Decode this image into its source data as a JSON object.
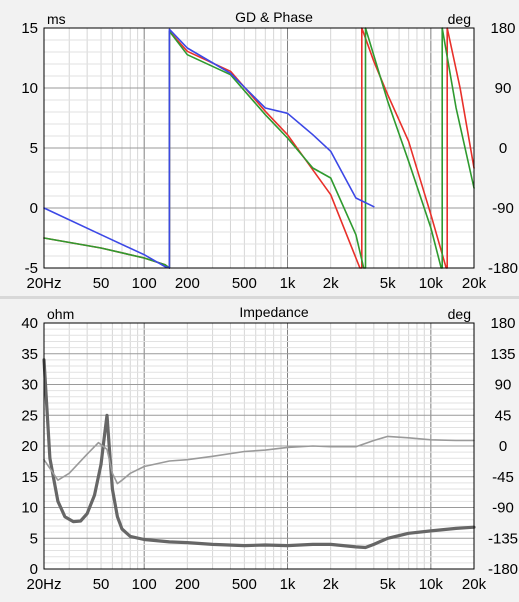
{
  "chart_data": [
    {
      "type": "line",
      "title": "GD & Phase",
      "xscale": "log",
      "xlim": [
        20,
        20000
      ],
      "x_ticks": [
        20,
        50,
        100,
        200,
        500,
        1000,
        2000,
        5000,
        10000,
        20000
      ],
      "x_tick_labels": [
        "20Hz",
        "50",
        "100",
        "200",
        "500",
        "1k",
        "2k",
        "5k",
        "10k",
        "20k"
      ],
      "left_axis": {
        "unit": "ms",
        "lim": [
          -5,
          15
        ],
        "ticks": [
          -5,
          0,
          5,
          10,
          15
        ],
        "tick_labels": [
          "-5",
          "0",
          "5",
          "10",
          "15"
        ]
      },
      "right_axis": {
        "unit": "deg",
        "lim": [
          -180,
          180
        ],
        "ticks": [
          -180,
          -90,
          0,
          90,
          180
        ],
        "tick_labels": [
          "-180",
          "-90",
          "0",
          "90",
          "180"
        ]
      },
      "grid": true,
      "series": [
        {
          "color": "#e8302a",
          "axis": "right",
          "wrap": true,
          "x": [
            20,
            50,
            100,
            140,
            150,
            200,
            400,
            700,
            1000,
            2000,
            3200,
            3300,
            4000,
            5000,
            7000,
            10000,
            12800,
            13000,
            16000,
            20000
          ],
          "y": [
            -135,
            -150,
            -165,
            -175,
            175,
            145,
            115,
            55,
            20,
            -70,
            -180,
            180,
            130,
            80,
            10,
            -100,
            -180,
            180,
            90,
            -30
          ]
        },
        {
          "color": "#2f9a2f",
          "axis": "right",
          "wrap": true,
          "x": [
            20,
            50,
            100,
            140,
            150,
            200,
            400,
            700,
            1000,
            1500,
            2000,
            3000,
            3400,
            3500,
            5000,
            7000,
            10000,
            11800,
            12000,
            15000,
            20000
          ],
          "y": [
            -135,
            -150,
            -165,
            -175,
            175,
            140,
            110,
            50,
            15,
            -30,
            -45,
            -130,
            -180,
            180,
            70,
            -20,
            -120,
            -180,
            180,
            60,
            -60
          ]
        },
        {
          "color": "#3c48e6",
          "axis": "right",
          "wrap": true,
          "x": [
            20,
            50,
            100,
            140,
            150,
            200,
            400,
            700,
            1000,
            1500,
            2000,
            3000,
            4000
          ],
          "y": [
            -90,
            -130,
            -160,
            -178,
            178,
            150,
            112,
            60,
            52,
            20,
            -5,
            -75,
            -88
          ]
        }
      ]
    },
    {
      "type": "line",
      "title": "Impedance",
      "xscale": "log",
      "xlim": [
        20,
        20000
      ],
      "x_ticks": [
        20,
        50,
        100,
        200,
        500,
        1000,
        2000,
        5000,
        10000,
        20000
      ],
      "x_tick_labels": [
        "20Hz",
        "50",
        "100",
        "200",
        "500",
        "1k",
        "2k",
        "5k",
        "10k",
        "20k"
      ],
      "left_axis": {
        "unit": "ohm",
        "lim": [
          0,
          40
        ],
        "ticks": [
          0,
          5,
          10,
          15,
          20,
          25,
          30,
          35,
          40
        ],
        "tick_labels": [
          "0",
          "5",
          "10",
          "15",
          "20",
          "25",
          "30",
          "35",
          "40"
        ]
      },
      "right_axis": {
        "unit": "deg",
        "lim": [
          -180,
          180
        ],
        "ticks": [
          -180,
          -135,
          -90,
          -45,
          0,
          45,
          90,
          135,
          180
        ],
        "tick_labels": [
          "-180",
          "-135",
          "-90",
          "-45",
          "0",
          "45",
          "90",
          "135",
          "180"
        ]
      },
      "grid": true,
      "series": [
        {
          "color": "#666666",
          "axis": "left",
          "wrap": false,
          "heavy": true,
          "x": [
            20,
            22,
            25,
            28,
            32,
            36,
            40,
            45,
            50,
            53,
            55,
            57,
            60,
            65,
            70,
            80,
            100,
            150,
            200,
            300,
            500,
            700,
            1000,
            1500,
            2000,
            3000,
            3500,
            4000,
            5000,
            7000,
            10000,
            15000,
            20000
          ],
          "y": [
            34,
            18,
            11,
            8.5,
            7.7,
            7.8,
            9,
            12,
            17,
            22,
            25,
            20,
            13,
            8.5,
            6.5,
            5.3,
            4.8,
            4.4,
            4.3,
            4.0,
            3.8,
            3.9,
            3.8,
            4.0,
            4.0,
            3.6,
            3.5,
            4.0,
            5.0,
            5.8,
            6.2,
            6.6,
            6.8
          ]
        },
        {
          "color": "#9a9a9a",
          "axis": "right",
          "wrap": false,
          "x": [
            20,
            25,
            30,
            40,
            48,
            55,
            60,
            65,
            70,
            80,
            100,
            150,
            200,
            300,
            500,
            700,
            1000,
            1500,
            2000,
            3000,
            4000,
            5000,
            7000,
            10000,
            15000,
            20000
          ],
          "y": [
            -20,
            -50,
            -40,
            -12,
            5,
            -5,
            -40,
            -55,
            -50,
            -40,
            -30,
            -22,
            -20,
            -15,
            -8,
            -6,
            -2,
            0,
            -1,
            -1,
            8,
            14,
            12,
            9,
            8,
            8
          ]
        }
      ]
    }
  ]
}
